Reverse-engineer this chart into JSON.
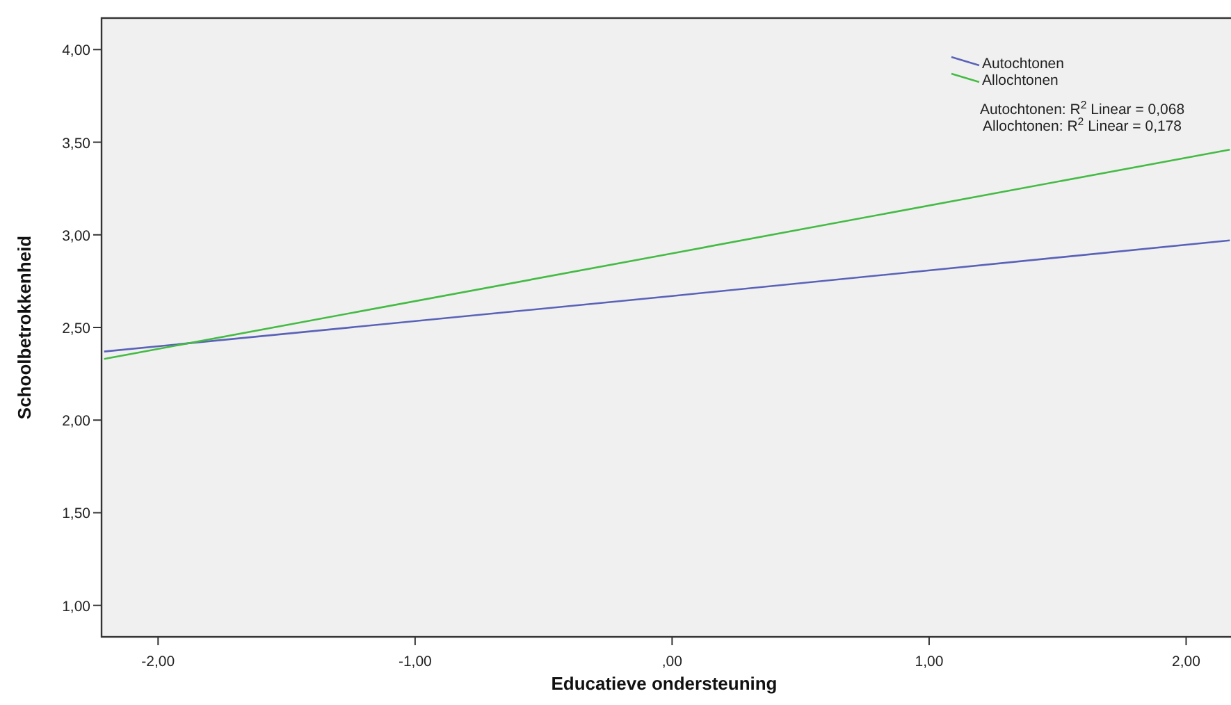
{
  "chart_data": {
    "type": "line",
    "xlabel": "Educatieve ondersteuning",
    "ylabel": "Schoolbetrokkenheid",
    "xlim": [
      -2.22,
      2.18
    ],
    "ylim": [
      0.83,
      4.17
    ],
    "xticks": [
      {
        "value": -2,
        "label": "-2,00"
      },
      {
        "value": -1,
        "label": "-1,00"
      },
      {
        "value": 0,
        "label": ",00"
      },
      {
        "value": 1,
        "label": "1,00"
      },
      {
        "value": 2,
        "label": "2,00"
      }
    ],
    "yticks": [
      {
        "value": 1,
        "label": "1,00"
      },
      {
        "value": 1.5,
        "label": "1,50"
      },
      {
        "value": 2,
        "label": "2,00"
      },
      {
        "value": 2.5,
        "label": "2,50"
      },
      {
        "value": 3,
        "label": "3,00"
      },
      {
        "value": 3.5,
        "label": "3,50"
      },
      {
        "value": 4,
        "label": "4,00"
      }
    ],
    "series": [
      {
        "name": "Autochtonen",
        "color": "#5a62b8",
        "x": [
          -2.21,
          0,
          2.17
        ],
        "values": [
          2.37,
          2.67,
          2.97
        ]
      },
      {
        "name": "Allochtonen",
        "color": "#44bb44",
        "x": [
          -2.21,
          0,
          2.17
        ],
        "values": [
          2.33,
          2.9,
          3.46
        ]
      }
    ],
    "annotations": [
      "Autochtonen: R$^{2}$ Linear = 0,068",
      "Allochtonen: R$^{2}$ Linear = 0,178"
    ],
    "legend": "top right",
    "grid": false,
    "marker": "none",
    "line_style": "solid"
  }
}
